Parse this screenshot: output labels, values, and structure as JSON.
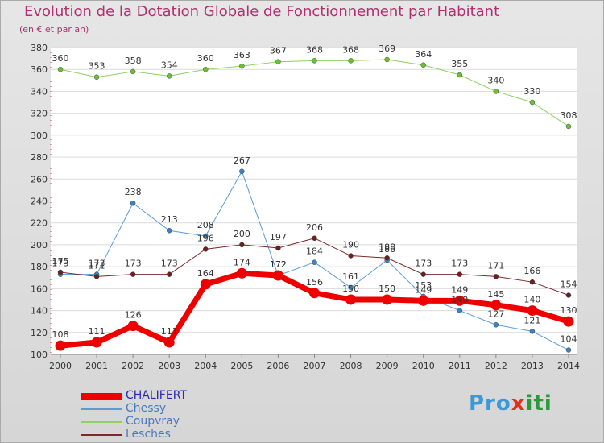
{
  "title": "Evolution de la Dotation Globale de Fonctionnement par Habitant",
  "subtitle": "(en € et par an)",
  "logo": {
    "parts": [
      "Pro",
      "x",
      "iti"
    ],
    "colors": [
      "#3a9ad9",
      "#e0301e",
      "#2c9a3c"
    ]
  },
  "chart_data": {
    "type": "line",
    "title": "Evolution de la Dotation Globale de Fonctionnement par Habitant",
    "subtitle": "(en € et par an)",
    "xlabel": "",
    "ylabel": "",
    "ylim": [
      100,
      380
    ],
    "yticks": [
      100,
      120,
      140,
      160,
      180,
      200,
      220,
      240,
      260,
      280,
      300,
      320,
      340,
      360,
      380
    ],
    "x": [
      "2000",
      "2001",
      "2002",
      "2003",
      "2004",
      "2005",
      "2006",
      "2007",
      "2008",
      "2009",
      "2010",
      "2011",
      "2012",
      "2013",
      "2014"
    ],
    "grid": "horizontal",
    "legend_position": "bottom-left",
    "series": [
      {
        "name": "Coupvray",
        "color": "#90d060",
        "marker": "#6cc030",
        "width": 1,
        "values": [
          360,
          353,
          358,
          354,
          360,
          363,
          367,
          368,
          368,
          369,
          364,
          355,
          340,
          330,
          308
        ]
      },
      {
        "name": "Chessy",
        "color": "#5a9bd5",
        "marker": "#3b82c4",
        "width": 1,
        "values": [
          173,
          173,
          238,
          213,
          208,
          267,
          172,
          184,
          161,
          186,
          153,
          140,
          127,
          121,
          104
        ]
      },
      {
        "name": "Lesches",
        "color": "#7a2a2a",
        "marker": "#6b1f1f",
        "width": 1,
        "values": [
          175,
          171,
          173,
          173,
          196,
          200,
          197,
          206,
          190,
          188,
          173,
          173,
          171,
          166,
          154
        ]
      },
      {
        "name": "CHALIFERT",
        "color": "#ee0000",
        "marker": "#ee0000",
        "width": 7,
        "values": [
          108,
          111,
          126,
          111,
          164,
          174,
          172,
          156,
          150,
          150,
          149,
          149,
          145,
          140,
          130
        ]
      }
    ],
    "legend_order": [
      "CHALIFERT",
      "Chessy",
      "Coupvray",
      "Lesches"
    ],
    "label_colors": {
      "CHALIFERT": "#2a2ab0",
      "Chessy": "#4a7ac0",
      "Coupvray": "#4a7ac0",
      "Lesches": "#4a7ac0"
    }
  }
}
